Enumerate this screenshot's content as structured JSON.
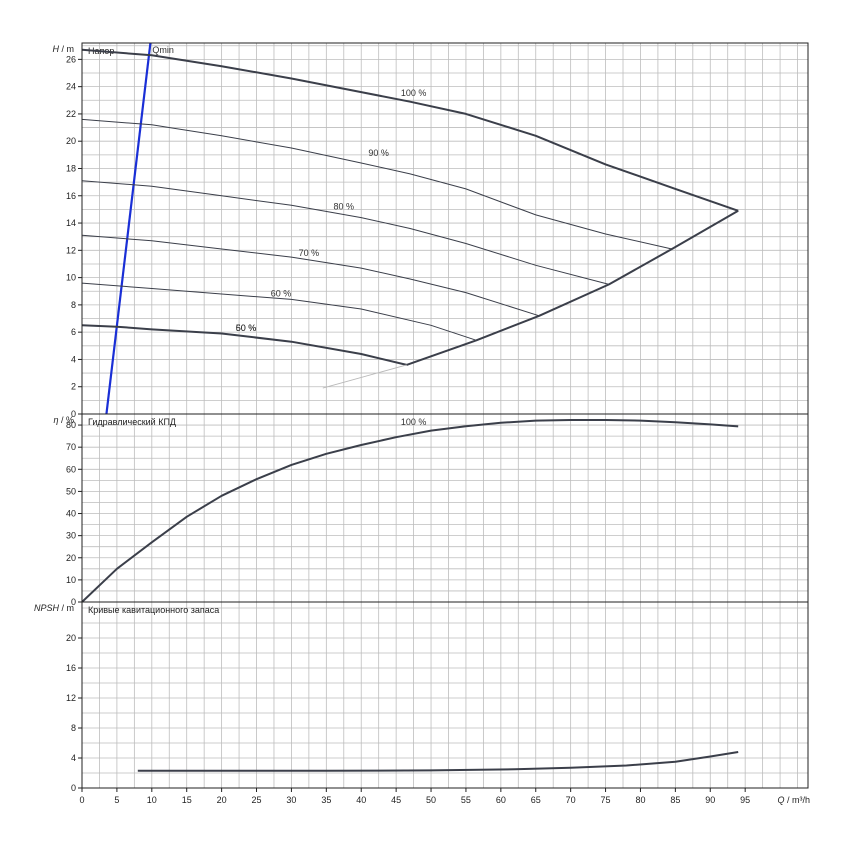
{
  "chart_data": [
    {
      "type": "line",
      "title": "Напор",
      "ylabel_symbol": "H",
      "ylabel_unit": " / m",
      "xlim": [
        0,
        104
      ],
      "ylim": [
        0,
        27.2
      ],
      "yticks": [
        0,
        2,
        4,
        6,
        8,
        10,
        12,
        14,
        16,
        18,
        20,
        22,
        24,
        26
      ],
      "grid": true,
      "series": [
        {
          "name": "100 %",
          "x": [
            0,
            10,
            20,
            30,
            40,
            47,
            55,
            65,
            75,
            85,
            94
          ],
          "y": [
            26.7,
            26.3,
            25.5,
            24.6,
            23.6,
            22.9,
            22.0,
            20.4,
            18.3,
            16.5,
            14.9
          ]
        },
        {
          "name": "90 %",
          "x": [
            0,
            10,
            20,
            30,
            40,
            47,
            55,
            65,
            75,
            84.5
          ],
          "y": [
            21.6,
            21.2,
            20.4,
            19.5,
            18.4,
            17.6,
            16.5,
            14.6,
            13.2,
            12.1
          ]
        },
        {
          "name": "80 %",
          "x": [
            0,
            10,
            20,
            30,
            40,
            47,
            55,
            65,
            75.5
          ],
          "y": [
            17.1,
            16.7,
            16.0,
            15.3,
            14.4,
            13.6,
            12.5,
            10.9,
            9.5
          ]
        },
        {
          "name": "70 %",
          "x": [
            0,
            10,
            20,
            30,
            40,
            47,
            55,
            65.5
          ],
          "y": [
            13.1,
            12.7,
            12.1,
            11.5,
            10.7,
            9.9,
            8.9,
            7.2
          ]
        },
        {
          "name": "60 %",
          "x": [
            0,
            10,
            20,
            30,
            40,
            50,
            56.5
          ],
          "y": [
            9.6,
            9.2,
            8.8,
            8.4,
            7.7,
            6.5,
            5.4
          ]
        },
        {
          "name": "50 %",
          "x": [
            0,
            5,
            10,
            20,
            30,
            40,
            46.5
          ],
          "y": [
            6.5,
            6.4,
            6.2,
            5.9,
            5.3,
            4.4,
            3.6
          ]
        },
        {
          "name": "",
          "x": [
            46.5,
            56.5,
            65.5,
            75.5,
            84.5,
            94
          ],
          "y": [
            3.6,
            5.4,
            7.2,
            9.5,
            12.1,
            14.9
          ]
        },
        {
          "name": "",
          "x": [
            34.5,
            46.5
          ],
          "y": [
            1.9,
            3.6
          ]
        }
      ],
      "annotations": [
        {
          "text": "100 %",
          "x": 47.5,
          "y": 23.3
        },
        {
          "text": "90 %",
          "x": 42.5,
          "y": 18.9
        },
        {
          "text": "80 %",
          "x": 37.5,
          "y": 15.0
        },
        {
          "text": "70 %",
          "x": 32.5,
          "y": 11.6
        },
        {
          "text": "60 %",
          "x": 28.5,
          "y": 8.6
        },
        {
          "text": "50 %",
          "x": 23.5,
          "y": 6.1
        },
        {
          "text": "60 %",
          "x": 23.5,
          "y": 6.1
        }
      ],
      "qmin": {
        "label": "Qmin",
        "x": [
          3.5,
          9.8
        ],
        "y": [
          0,
          27.2
        ]
      }
    },
    {
      "type": "line",
      "title": "Гидравлический КПД",
      "ylabel_symbol": "η",
      "ylabel_unit": " / %",
      "xlim": [
        0,
        104
      ],
      "ylim": [
        0,
        85
      ],
      "yticks": [
        0,
        10,
        20,
        30,
        40,
        50,
        60,
        70,
        80
      ],
      "grid": true,
      "series": [
        {
          "name": "100 %",
          "x": [
            0,
            5,
            10,
            15,
            20,
            25,
            30,
            35,
            40,
            45,
            50,
            55,
            60,
            65,
            70,
            75,
            80,
            85,
            90,
            94
          ],
          "y": [
            0,
            15,
            27,
            38.5,
            48,
            55.5,
            62,
            67,
            71,
            74.5,
            77.5,
            79.5,
            81,
            82,
            82.3,
            82.3,
            82,
            81.3,
            80.3,
            79.4
          ]
        }
      ],
      "annotations": [
        {
          "text": "100 %",
          "x": 47.5,
          "y": 80
        }
      ]
    },
    {
      "type": "line",
      "title": "Кривые кавитационного запаса",
      "ylabel_symbol": "NPSH",
      "ylabel_unit": " / m",
      "xlim": [
        0,
        104
      ],
      "ylim": [
        0,
        24.8
      ],
      "yticks": [
        0,
        4,
        8,
        12,
        16,
        20
      ],
      "grid": true,
      "series": [
        {
          "name": "",
          "x": [
            8,
            20,
            35,
            50,
            62,
            70,
            78,
            85,
            90,
            94
          ],
          "y": [
            2.3,
            2.3,
            2.3,
            2.35,
            2.5,
            2.7,
            3.0,
            3.5,
            4.2,
            4.8
          ]
        }
      ]
    }
  ],
  "xaxis": {
    "label_symbol": "Q",
    "label_unit": " / m³/h",
    "ticks": [
      0,
      5,
      10,
      15,
      20,
      25,
      30,
      35,
      40,
      45,
      50,
      55,
      60,
      65,
      70,
      75,
      80,
      85,
      90,
      95
    ]
  },
  "colors": {
    "curve": "#3b3f4a",
    "qmin": "#1a2fd6",
    "grid": "#bdbdbd",
    "frame": "#222222",
    "system": "#b9b9b9"
  }
}
